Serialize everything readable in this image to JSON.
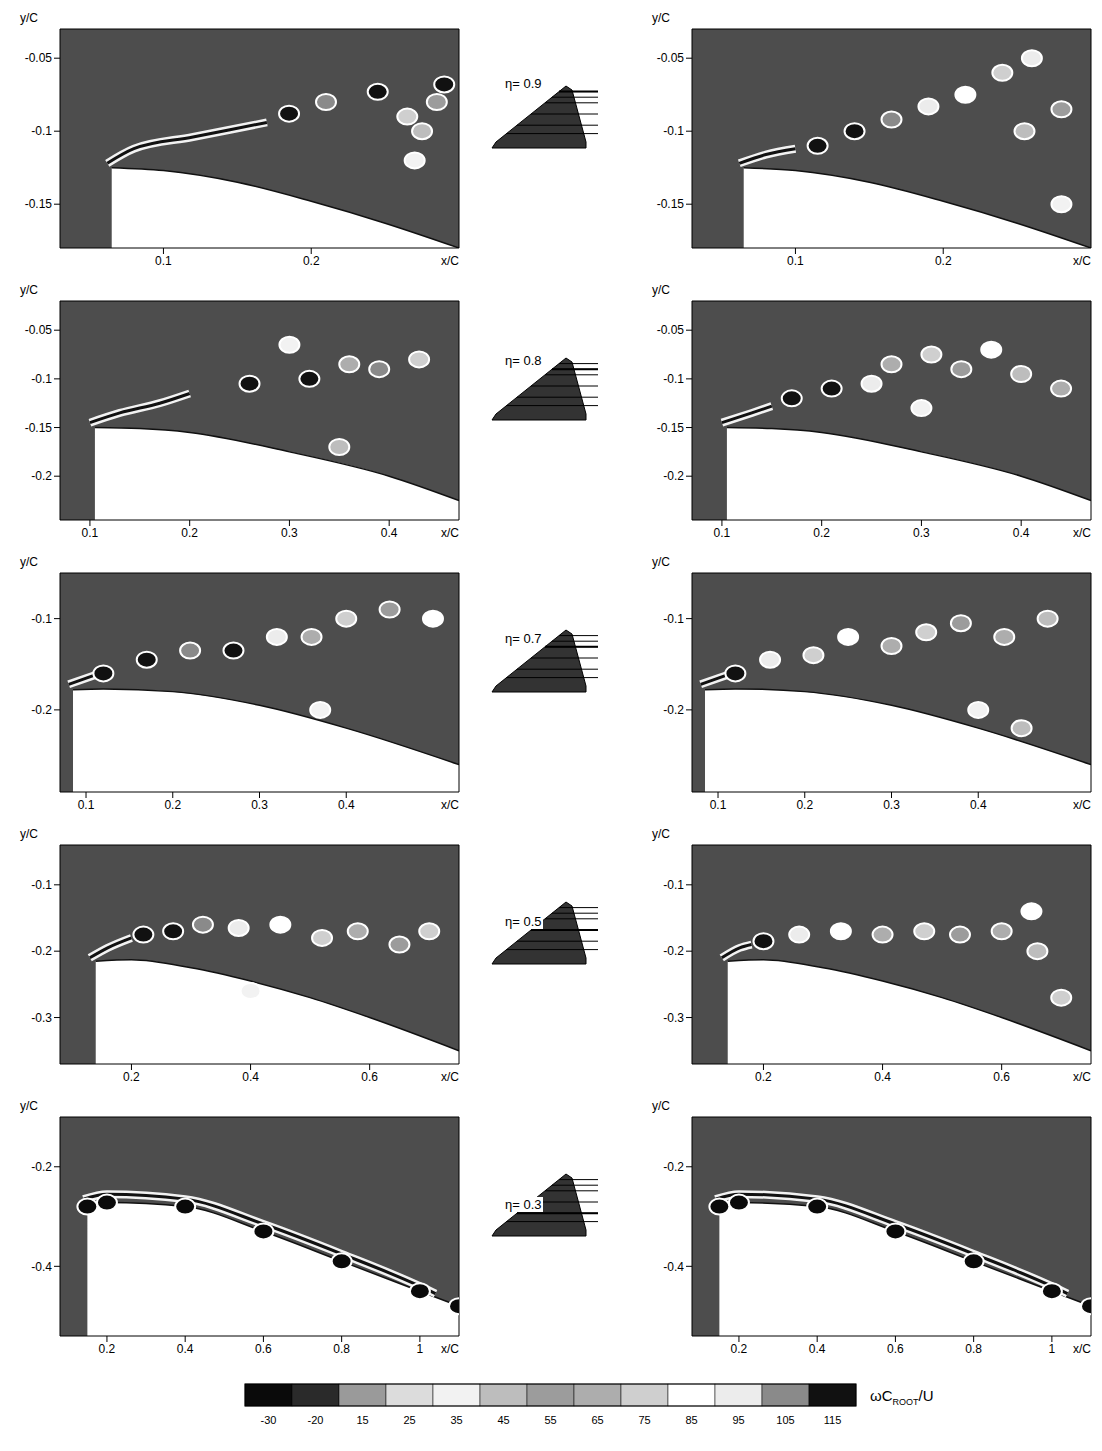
{
  "chart_data": [
    {
      "type": "contour",
      "eta_label": "η= 0.9",
      "eta": 0.9,
      "x_label": "x/C",
      "y_label": "y/C",
      "xlim": [
        0.03,
        0.3
      ],
      "ylim": [
        -0.18,
        -0.03
      ],
      "xticks": [
        0.1,
        0.2
      ],
      "yticks": [
        -0.05,
        -0.1,
        -0.15
      ],
      "surface": {
        "x": [
          0.065,
          0.1,
          0.15,
          0.2,
          0.25,
          0.3
        ],
        "y": [
          -0.125,
          -0.127,
          -0.135,
          -0.148,
          -0.163,
          -0.18
        ]
      },
      "panels": [
        {
          "shear_layer": {
            "x": [
              0.062,
              0.08,
              0.12,
              0.17
            ],
            "y": [
              -0.122,
              -0.112,
              -0.104,
              -0.094
            ]
          },
          "vortices": {
            "x": [
              0.185,
              0.21,
              0.245,
              0.265,
              0.275,
              0.29,
              0.285,
              0.27
            ],
            "y": [
              -0.088,
              -0.08,
              -0.073,
              -0.09,
              -0.1,
              -0.068,
              -0.08,
              -0.12
            ],
            "values": [
              115,
              105,
              115,
              75,
              45,
              115,
              55,
              35
            ]
          }
        },
        {
          "shear_layer": {
            "x": [
              0.062,
              0.08,
              0.1
            ],
            "y": [
              -0.122,
              -0.116,
              -0.112
            ]
          },
          "vortices": {
            "x": [
              0.115,
              0.14,
              0.165,
              0.19,
              0.215,
              0.24,
              0.26,
              0.255,
              0.28,
              0.28
            ],
            "y": [
              -0.11,
              -0.1,
              -0.092,
              -0.083,
              -0.075,
              -0.06,
              -0.05,
              -0.1,
              -0.085,
              -0.15
            ],
            "values": [
              115,
              115,
              105,
              95,
              85,
              75,
              95,
              45,
              55,
              35
            ]
          }
        }
      ]
    },
    {
      "type": "contour",
      "eta_label": "η= 0.8",
      "eta": 0.8,
      "x_label": "x/C",
      "y_label": "y/C",
      "xlim": [
        0.07,
        0.47
      ],
      "ylim": [
        -0.245,
        -0.02
      ],
      "xticks": [
        0.1,
        0.2,
        0.3,
        0.4
      ],
      "yticks": [
        -0.05,
        -0.1,
        -0.15,
        -0.2
      ],
      "surface": {
        "x": [
          0.105,
          0.15,
          0.2,
          0.3,
          0.4,
          0.47
        ],
        "y": [
          -0.15,
          -0.151,
          -0.155,
          -0.175,
          -0.2,
          -0.225
        ]
      },
      "panels": [
        {
          "shear_layer": {
            "x": [
              0.1,
              0.13,
              0.17,
              0.2
            ],
            "y": [
              -0.145,
              -0.135,
              -0.125,
              -0.115
            ]
          },
          "vortices": {
            "x": [
              0.26,
              0.32,
              0.36,
              0.39,
              0.43,
              0.35,
              0.3
            ],
            "y": [
              -0.105,
              -0.1,
              -0.085,
              -0.09,
              -0.08,
              -0.17,
              -0.065
            ],
            "values": [
              115,
              115,
              65,
              105,
              75,
              45,
              35
            ]
          }
        },
        {
          "shear_layer": {
            "x": [
              0.1,
              0.13,
              0.15
            ],
            "y": [
              -0.145,
              -0.135,
              -0.128
            ]
          },
          "vortices": {
            "x": [
              0.17,
              0.21,
              0.25,
              0.27,
              0.31,
              0.34,
              0.37,
              0.4,
              0.44,
              0.3
            ],
            "y": [
              -0.12,
              -0.11,
              -0.105,
              -0.085,
              -0.075,
              -0.09,
              -0.07,
              -0.095,
              -0.11,
              -0.13
            ],
            "values": [
              115,
              115,
              95,
              65,
              75,
              55,
              85,
              45,
              65,
              35
            ]
          }
        }
      ]
    },
    {
      "type": "contour",
      "eta_label": "η= 0.7",
      "eta": 0.7,
      "x_label": "x/C",
      "y_label": "y/C",
      "xlim": [
        0.07,
        0.53
      ],
      "ylim": [
        -0.29,
        -0.05
      ],
      "xticks": [
        0.1,
        0.2,
        0.3,
        0.4
      ],
      "yticks": [
        -0.1,
        -0.2
      ],
      "surface": {
        "x": [
          0.085,
          0.12,
          0.2,
          0.3,
          0.4,
          0.53
        ],
        "y": [
          -0.178,
          -0.177,
          -0.18,
          -0.195,
          -0.22,
          -0.26
        ]
      },
      "panels": [
        {
          "shear_layer": {
            "x": [
              0.08,
              0.11
            ],
            "y": [
              -0.172,
              -0.162
            ]
          },
          "vortices": {
            "x": [
              0.12,
              0.17,
              0.22,
              0.27,
              0.32,
              0.36,
              0.4,
              0.45,
              0.5,
              0.37
            ],
            "y": [
              -0.16,
              -0.145,
              -0.135,
              -0.135,
              -0.12,
              -0.12,
              -0.1,
              -0.09,
              -0.1,
              -0.2
            ],
            "values": [
              115,
              115,
              105,
              115,
              95,
              65,
              75,
              55,
              85,
              35
            ]
          }
        },
        {
          "shear_layer": {
            "x": [
              0.08,
              0.11
            ],
            "y": [
              -0.172,
              -0.162
            ]
          },
          "vortices": {
            "x": [
              0.12,
              0.16,
              0.21,
              0.25,
              0.3,
              0.34,
              0.38,
              0.43,
              0.48,
              0.4,
              0.45
            ],
            "y": [
              -0.16,
              -0.145,
              -0.14,
              -0.12,
              -0.13,
              -0.115,
              -0.105,
              -0.12,
              -0.1,
              -0.2,
              -0.22
            ],
            "values": [
              115,
              95,
              75,
              85,
              65,
              75,
              55,
              65,
              45,
              35,
              45
            ]
          }
        }
      ]
    },
    {
      "type": "contour",
      "eta_label": "η= 0.5",
      "eta": 0.5,
      "x_label": "x/C",
      "y_label": "y/C",
      "xlim": [
        0.08,
        0.75
      ],
      "ylim": [
        -0.37,
        -0.04
      ],
      "xticks": [
        0.2,
        0.4,
        0.6
      ],
      "yticks": [
        -0.1,
        -0.2,
        -0.3
      ],
      "surface": {
        "x": [
          0.14,
          0.2,
          0.3,
          0.4,
          0.5,
          0.6,
          0.75
        ],
        "y": [
          -0.215,
          -0.213,
          -0.225,
          -0.245,
          -0.27,
          -0.3,
          -0.35
        ]
      },
      "panels": [
        {
          "shear_layer": {
            "x": [
              0.13,
              0.16,
              0.2
            ],
            "y": [
              -0.21,
              -0.195,
              -0.18
            ]
          },
          "vortices": {
            "x": [
              0.22,
              0.27,
              0.32,
              0.38,
              0.45,
              0.52,
              0.58,
              0.65,
              0.7,
              0.4
            ],
            "y": [
              -0.175,
              -0.17,
              -0.16,
              -0.165,
              -0.16,
              -0.18,
              -0.17,
              -0.19,
              -0.17,
              -0.26
            ],
            "values": [
              115,
              115,
              105,
              95,
              85,
              75,
              65,
              55,
              75,
              35
            ]
          }
        },
        {
          "shear_layer": {
            "x": [
              0.13,
              0.16,
              0.18
            ],
            "y": [
              -0.21,
              -0.195,
              -0.19
            ]
          },
          "vortices": {
            "x": [
              0.2,
              0.26,
              0.33,
              0.4,
              0.47,
              0.53,
              0.6,
              0.65,
              0.7,
              0.66
            ],
            "y": [
              -0.185,
              -0.175,
              -0.17,
              -0.175,
              -0.17,
              -0.175,
              -0.17,
              -0.14,
              -0.27,
              -0.2
            ],
            "values": [
              115,
              95,
              85,
              65,
              75,
              55,
              65,
              85,
              75,
              45
            ]
          }
        }
      ]
    },
    {
      "type": "contour",
      "eta_label": "η= 0.3",
      "eta": 0.3,
      "x_label": "x/C",
      "y_label": "y/C",
      "xlim": [
        0.08,
        1.1
      ],
      "ylim": [
        -0.54,
        -0.1
      ],
      "xticks": [
        0.2,
        0.4,
        0.6,
        0.8,
        1
      ],
      "yticks": [
        -0.2,
        -0.4
      ],
      "surface": {
        "x": [
          0.15,
          0.2,
          0.4,
          0.6,
          0.8,
          1.0,
          1.1
        ],
        "y": [
          -0.28,
          -0.272,
          -0.28,
          -0.33,
          -0.39,
          -0.45,
          -0.48
        ]
      },
      "panels": [
        {
          "shear_layer": {
            "x": [
              0.14,
              0.2,
              0.4,
              0.6,
              0.8,
              1.0,
              1.04
            ],
            "y": [
              -0.265,
              -0.255,
              -0.265,
              -0.315,
              -0.375,
              -0.44,
              -0.455
            ]
          },
          "vortices": {
            "x": [],
            "y": [],
            "values": []
          }
        },
        {
          "shear_layer": {
            "x": [
              0.14,
              0.2,
              0.4,
              0.6,
              0.8,
              1.0,
              1.04
            ],
            "y": [
              -0.265,
              -0.255,
              -0.265,
              -0.315,
              -0.375,
              -0.44,
              -0.455
            ]
          },
          "vortices": {
            "x": [],
            "y": [],
            "values": []
          }
        }
      ]
    },
    {
      "type": "colorbar",
      "label": [
        "ωC",
        "ROOT",
        "/U"
      ],
      "ticks": [
        -30,
        -20,
        15,
        25,
        35,
        45,
        55,
        65,
        75,
        85,
        95,
        105,
        115
      ],
      "colors": [
        "#0a0a0a",
        "#2a2a2a",
        "#9a9a9a",
        "#dcdcdc",
        "#f2f2f2",
        "#bdbdbd",
        "#9c9c9c",
        "#adadad",
        "#cfcfcf",
        "#ffffff",
        "#ececec",
        "#8a8a8a",
        "#111111"
      ]
    }
  ]
}
